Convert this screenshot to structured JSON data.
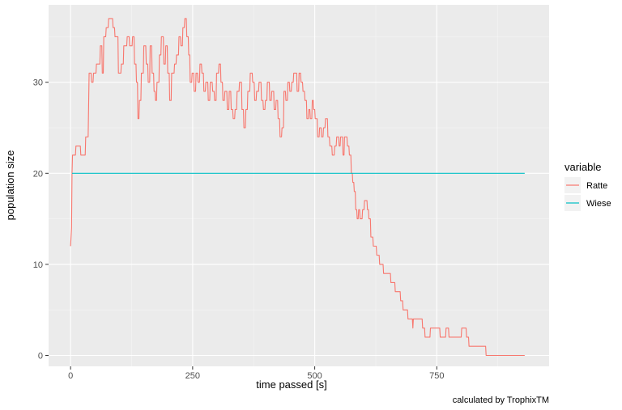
{
  "chart_data": {
    "type": "line",
    "xlabel": "time passed [s]",
    "ylabel": "population size",
    "caption": "calculated by TrophixTM",
    "legend_title": "variable",
    "legend_placement": "right",
    "grid": true,
    "xlim": [
      -45,
      980
    ],
    "ylim": [
      -1.2,
      38.5
    ],
    "x_ticks": [
      0,
      250,
      500,
      750
    ],
    "x_tick_labels": [
      "0",
      "250",
      "500",
      "750"
    ],
    "y_ticks": [
      0,
      10,
      20,
      30
    ],
    "y_tick_labels": [
      "0",
      "10",
      "20",
      "30"
    ],
    "series": [
      {
        "name": "Ratte",
        "color": "#F8766D",
        "points": [
          [
            0,
            12
          ],
          [
            2,
            14
          ],
          [
            3,
            20
          ],
          [
            4,
            22
          ],
          [
            10,
            22
          ],
          [
            11,
            23
          ],
          [
            20,
            23
          ],
          [
            21,
            22
          ],
          [
            30,
            22
          ],
          [
            31,
            24
          ],
          [
            36,
            24
          ],
          [
            38,
            31
          ],
          [
            42,
            31
          ],
          [
            43,
            30
          ],
          [
            46,
            30
          ],
          [
            47,
            31
          ],
          [
            52,
            31
          ],
          [
            53,
            32
          ],
          [
            60,
            32
          ],
          [
            61,
            34
          ],
          [
            64,
            34
          ],
          [
            65,
            31
          ],
          [
            67,
            31
          ],
          [
            68,
            35
          ],
          [
            72,
            35
          ],
          [
            73,
            36
          ],
          [
            77,
            36
          ],
          [
            78,
            37
          ],
          [
            86,
            37
          ],
          [
            87,
            36
          ],
          [
            90,
            36
          ],
          [
            91,
            35
          ],
          [
            97,
            35
          ],
          [
            98,
            31
          ],
          [
            103,
            31
          ],
          [
            104,
            32
          ],
          [
            108,
            32
          ],
          [
            109,
            34
          ],
          [
            115,
            34
          ],
          [
            116,
            35
          ],
          [
            120,
            35
          ],
          [
            121,
            34
          ],
          [
            126,
            34
          ],
          [
            127,
            35
          ],
          [
            130,
            35
          ],
          [
            131,
            32
          ],
          [
            134,
            32
          ],
          [
            135,
            30
          ],
          [
            137,
            30
          ],
          [
            138,
            26
          ],
          [
            140,
            26
          ],
          [
            141,
            28
          ],
          [
            144,
            28
          ],
          [
            145,
            31
          ],
          [
            149,
            31
          ],
          [
            150,
            34
          ],
          [
            154,
            34
          ],
          [
            155,
            32
          ],
          [
            158,
            32
          ],
          [
            159,
            30
          ],
          [
            162,
            30
          ],
          [
            163,
            34
          ],
          [
            166,
            34
          ],
          [
            167,
            31
          ],
          [
            170,
            31
          ],
          [
            171,
            29
          ],
          [
            173,
            29
          ],
          [
            174,
            28
          ],
          [
            176,
            28
          ],
          [
            177,
            30
          ],
          [
            181,
            30
          ],
          [
            182,
            33
          ],
          [
            185,
            33
          ],
          [
            186,
            35
          ],
          [
            190,
            35
          ],
          [
            191,
            32
          ],
          [
            194,
            32
          ],
          [
            195,
            34
          ],
          [
            198,
            34
          ],
          [
            199,
            31
          ],
          [
            202,
            31
          ],
          [
            203,
            28
          ],
          [
            206,
            28
          ],
          [
            207,
            31
          ],
          [
            212,
            31
          ],
          [
            213,
            32
          ],
          [
            216,
            32
          ],
          [
            217,
            33
          ],
          [
            221,
            33
          ],
          [
            222,
            35
          ],
          [
            225,
            35
          ],
          [
            226,
            34
          ],
          [
            229,
            34
          ],
          [
            230,
            36
          ],
          [
            233,
            36
          ],
          [
            234,
            37
          ],
          [
            237,
            37
          ],
          [
            238,
            35
          ],
          [
            241,
            35
          ],
          [
            242,
            33
          ],
          [
            244,
            33
          ],
          [
            245,
            30
          ],
          [
            248,
            30
          ],
          [
            249,
            31
          ],
          [
            252,
            31
          ],
          [
            253,
            29
          ],
          [
            256,
            29
          ],
          [
            257,
            31
          ],
          [
            260,
            31
          ],
          [
            261,
            30
          ],
          [
            264,
            30
          ],
          [
            265,
            32
          ],
          [
            268,
            32
          ],
          [
            269,
            31
          ],
          [
            272,
            31
          ],
          [
            273,
            29
          ],
          [
            276,
            29
          ],
          [
            277,
            30
          ],
          [
            281,
            30
          ],
          [
            282,
            28
          ],
          [
            285,
            28
          ],
          [
            286,
            30
          ],
          [
            290,
            30
          ],
          [
            291,
            29
          ],
          [
            294,
            29
          ],
          [
            295,
            28
          ],
          [
            298,
            28
          ],
          [
            299,
            31
          ],
          [
            303,
            31
          ],
          [
            304,
            32
          ],
          [
            307,
            32
          ],
          [
            308,
            30
          ],
          [
            311,
            30
          ],
          [
            312,
            28
          ],
          [
            315,
            28
          ],
          [
            316,
            29
          ],
          [
            320,
            29
          ],
          [
            321,
            27
          ],
          [
            324,
            27
          ],
          [
            325,
            29
          ],
          [
            328,
            29
          ],
          [
            329,
            27
          ],
          [
            332,
            27
          ],
          [
            333,
            26
          ],
          [
            336,
            26
          ],
          [
            337,
            27
          ],
          [
            340,
            27
          ],
          [
            341,
            29
          ],
          [
            345,
            29
          ],
          [
            346,
            30
          ],
          [
            350,
            30
          ],
          [
            351,
            27
          ],
          [
            354,
            27
          ],
          [
            355,
            25
          ],
          [
            358,
            25
          ],
          [
            359,
            27
          ],
          [
            362,
            27
          ],
          [
            363,
            29
          ],
          [
            367,
            29
          ],
          [
            368,
            31
          ],
          [
            372,
            31
          ],
          [
            373,
            30
          ],
          [
            376,
            30
          ],
          [
            377,
            28
          ],
          [
            380,
            28
          ],
          [
            381,
            29
          ],
          [
            385,
            29
          ],
          [
            386,
            30
          ],
          [
            390,
            30
          ],
          [
            391,
            28
          ],
          [
            394,
            28
          ],
          [
            395,
            27
          ],
          [
            398,
            27
          ],
          [
            399,
            28
          ],
          [
            402,
            28
          ],
          [
            403,
            30
          ],
          [
            407,
            30
          ],
          [
            408,
            28
          ],
          [
            411,
            28
          ],
          [
            412,
            29
          ],
          [
            416,
            29
          ],
          [
            417,
            27
          ],
          [
            420,
            27
          ],
          [
            421,
            28
          ],
          [
            424,
            28
          ],
          [
            425,
            26
          ],
          [
            428,
            26
          ],
          [
            429,
            24
          ],
          [
            432,
            24
          ],
          [
            433,
            25
          ],
          [
            436,
            25
          ],
          [
            437,
            29
          ],
          [
            440,
            29
          ],
          [
            441,
            28
          ],
          [
            444,
            28
          ],
          [
            445,
            30
          ],
          [
            448,
            30
          ],
          [
            449,
            29
          ],
          [
            452,
            29
          ],
          [
            453,
            30
          ],
          [
            456,
            30
          ],
          [
            457,
            31
          ],
          [
            463,
            31
          ],
          [
            464,
            29
          ],
          [
            467,
            29
          ],
          [
            468,
            31
          ],
          [
            471,
            31
          ],
          [
            472,
            30
          ],
          [
            475,
            30
          ],
          [
            476,
            29
          ],
          [
            479,
            29
          ],
          [
            480,
            28
          ],
          [
            483,
            28
          ],
          [
            484,
            26
          ],
          [
            487,
            26
          ],
          [
            488,
            27
          ],
          [
            490,
            27
          ],
          [
            491,
            26
          ],
          [
            494,
            26
          ],
          [
            495,
            28
          ],
          [
            497,
            28
          ],
          [
            498,
            27
          ],
          [
            500,
            27
          ],
          [
            501,
            26
          ],
          [
            505,
            26
          ],
          [
            506,
            24
          ],
          [
            509,
            24
          ],
          [
            510,
            25
          ],
          [
            513,
            25
          ],
          [
            514,
            24
          ],
          [
            517,
            24
          ],
          [
            518,
            25
          ],
          [
            521,
            25
          ],
          [
            522,
            26
          ],
          [
            526,
            26
          ],
          [
            527,
            24
          ],
          [
            530,
            24
          ],
          [
            531,
            23
          ],
          [
            535,
            23
          ],
          [
            536,
            22
          ],
          [
            540,
            22
          ],
          [
            541,
            23
          ],
          [
            544,
            23
          ],
          [
            545,
            24
          ],
          [
            549,
            24
          ],
          [
            550,
            23
          ],
          [
            552,
            23
          ],
          [
            553,
            24
          ],
          [
            557,
            24
          ],
          [
            558,
            22
          ],
          [
            560,
            22
          ],
          [
            561,
            24
          ],
          [
            566,
            24
          ],
          [
            567,
            23
          ],
          [
            570,
            23
          ],
          [
            571,
            22
          ],
          [
            574,
            22
          ],
          [
            575,
            20
          ],
          [
            577,
            20
          ],
          [
            578,
            19
          ],
          [
            580,
            19
          ],
          [
            581,
            18
          ],
          [
            583,
            18
          ],
          [
            584,
            16
          ],
          [
            586,
            16
          ],
          [
            587,
            15
          ],
          [
            589,
            15
          ],
          [
            590,
            16
          ],
          [
            592,
            16
          ],
          [
            593,
            15
          ],
          [
            597,
            15
          ],
          [
            598,
            16
          ],
          [
            601,
            16
          ],
          [
            602,
            17
          ],
          [
            607,
            17
          ],
          [
            608,
            16
          ],
          [
            610,
            16
          ],
          [
            611,
            15
          ],
          [
            614,
            15
          ],
          [
            615,
            13
          ],
          [
            619,
            13
          ],
          [
            620,
            12
          ],
          [
            626,
            12
          ],
          [
            627,
            11
          ],
          [
            632,
            11
          ],
          [
            633,
            10
          ],
          [
            640,
            10
          ],
          [
            641,
            9
          ],
          [
            655,
            9
          ],
          [
            656,
            8
          ],
          [
            664,
            8
          ],
          [
            665,
            7
          ],
          [
            675,
            7
          ],
          [
            676,
            6
          ],
          [
            680,
            6
          ],
          [
            681,
            5
          ],
          [
            690,
            5
          ],
          [
            691,
            4
          ],
          [
            700,
            4
          ],
          [
            701,
            3
          ],
          [
            702,
            4
          ],
          [
            720,
            4
          ],
          [
            721,
            3
          ],
          [
            725,
            3
          ],
          [
            726,
            2
          ],
          [
            736,
            2
          ],
          [
            737,
            3
          ],
          [
            756,
            3
          ],
          [
            757,
            2
          ],
          [
            768,
            2
          ],
          [
            769,
            3
          ],
          [
            774,
            3
          ],
          [
            775,
            2
          ],
          [
            800,
            2
          ],
          [
            801,
            3
          ],
          [
            810,
            3
          ],
          [
            811,
            2
          ],
          [
            815,
            2
          ],
          [
            816,
            1
          ],
          [
            850,
            1
          ],
          [
            851,
            0
          ],
          [
            930,
            0
          ]
        ]
      },
      {
        "name": "Wiese",
        "color": "#00BFC4",
        "points": [
          [
            3,
            20
          ],
          [
            930,
            20
          ]
        ]
      }
    ]
  }
}
